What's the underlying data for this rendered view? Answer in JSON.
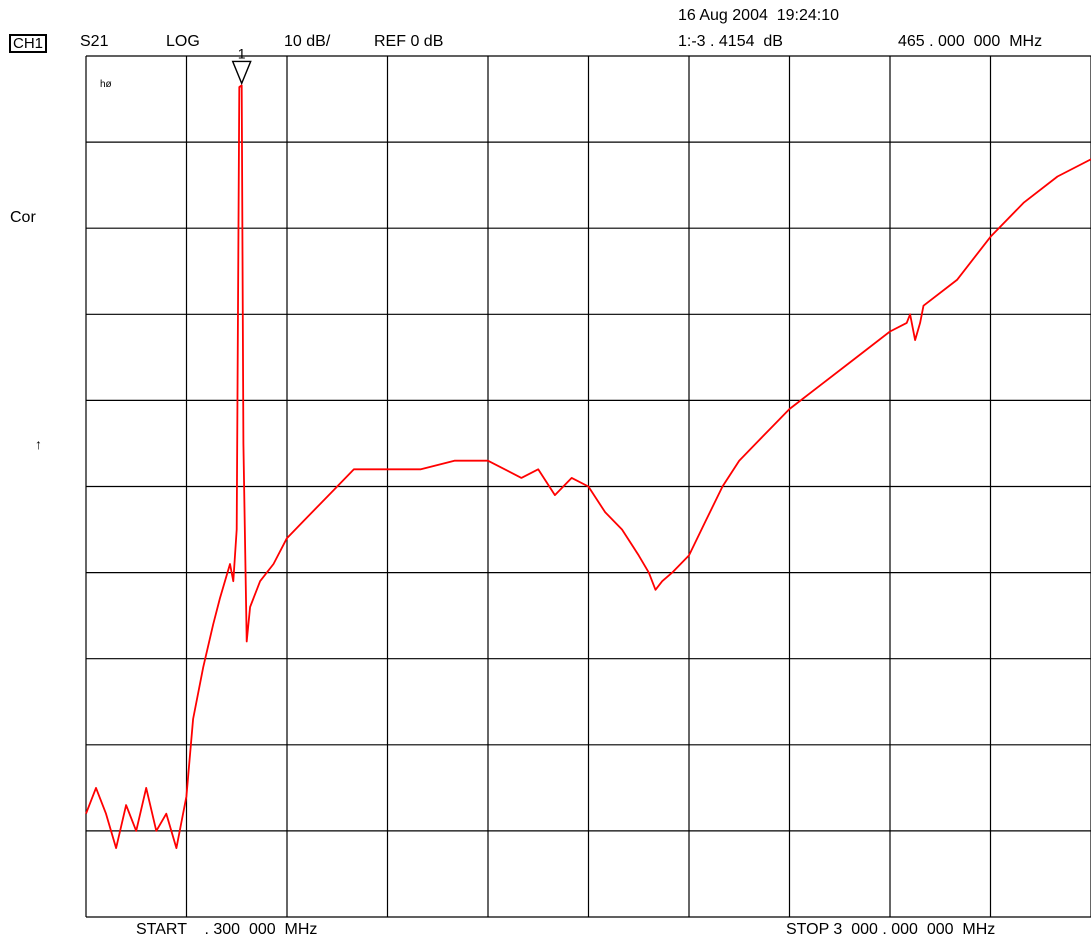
{
  "header": {
    "datetime": "16 Aug 2004  19:24:10",
    "channel": "CH1",
    "parameter": "S21",
    "format": "LOG",
    "scale": "10 dB/",
    "reference": "REF 0 dB",
    "marker_readout_value": "1:-3 . 4154  dB",
    "marker_readout_freq": "465 . 000  000  MHz"
  },
  "side": {
    "correction": "Cor",
    "hold_mark": "hø",
    "arrow": "↑"
  },
  "footer": {
    "start": "START    . 300  000  MHz",
    "stop": "STOP 3  000 . 000  000  MHz"
  },
  "marker": {
    "label": "1"
  },
  "colors": {
    "trace": "#ff0000",
    "grid": "#000000",
    "background": "#ffffff"
  },
  "chart_data": {
    "type": "line",
    "title": "",
    "xlabel": "",
    "ylabel": "",
    "x_unit": "MHz",
    "y_unit": "dB",
    "xlim": [
      0.3,
      3000
    ],
    "ylim": [
      -100,
      0
    ],
    "grid": true,
    "x_divisions": 10,
    "y_divisions": 10,
    "marker": {
      "freq_mhz": 465,
      "value_db": -3.4154
    },
    "series": [
      {
        "color": "#ff0000",
        "points": [
          [
            0.3,
            -88
          ],
          [
            30,
            -85
          ],
          [
            60,
            -88
          ],
          [
            90,
            -92
          ],
          [
            120,
            -87
          ],
          [
            150,
            -90
          ],
          [
            180,
            -85
          ],
          [
            210,
            -90
          ],
          [
            240,
            -88
          ],
          [
            270,
            -92
          ],
          [
            300,
            -86
          ],
          [
            320,
            -77
          ],
          [
            350,
            -71
          ],
          [
            380,
            -66
          ],
          [
            400,
            -63
          ],
          [
            430,
            -59
          ],
          [
            440,
            -61
          ],
          [
            450,
            -55
          ],
          [
            458,
            -3.6
          ],
          [
            465,
            -3.4154
          ],
          [
            470,
            -45
          ],
          [
            480,
            -68
          ],
          [
            490,
            -64
          ],
          [
            520,
            -61
          ],
          [
            560,
            -59
          ],
          [
            600,
            -56
          ],
          [
            650,
            -54
          ],
          [
            700,
            -52
          ],
          [
            750,
            -50
          ],
          [
            800,
            -48
          ],
          [
            900,
            -48
          ],
          [
            1000,
            -48
          ],
          [
            1100,
            -47
          ],
          [
            1200,
            -47
          ],
          [
            1300,
            -49
          ],
          [
            1350,
            -48
          ],
          [
            1400,
            -51
          ],
          [
            1450,
            -49
          ],
          [
            1500,
            -50
          ],
          [
            1550,
            -53
          ],
          [
            1600,
            -55
          ],
          [
            1650,
            -58
          ],
          [
            1680,
            -60
          ],
          [
            1700,
            -62
          ],
          [
            1720,
            -61
          ],
          [
            1750,
            -60
          ],
          [
            1800,
            -58
          ],
          [
            1850,
            -54
          ],
          [
            1900,
            -50
          ],
          [
            1950,
            -47
          ],
          [
            2000,
            -45
          ],
          [
            2050,
            -43
          ],
          [
            2100,
            -41
          ],
          [
            2200,
            -38
          ],
          [
            2300,
            -35
          ],
          [
            2400,
            -32
          ],
          [
            2450,
            -31
          ],
          [
            2460,
            -30
          ],
          [
            2475,
            -33
          ],
          [
            2490,
            -31
          ],
          [
            2500,
            -29
          ],
          [
            2600,
            -26
          ],
          [
            2700,
            -21
          ],
          [
            2800,
            -17
          ],
          [
            2900,
            -14
          ],
          [
            3000,
            -12
          ]
        ]
      }
    ]
  }
}
